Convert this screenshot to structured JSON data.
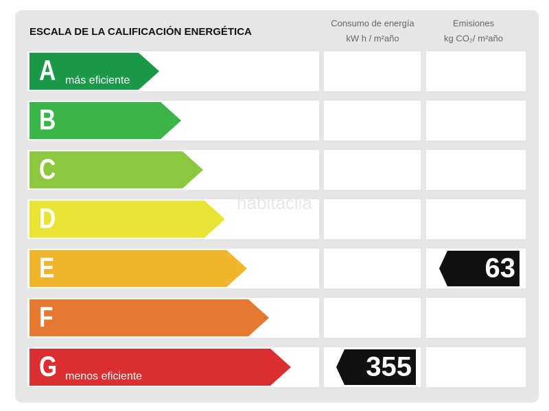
{
  "title": "ESCALA DE LA CALIFICACIÓN ENERGÉTICA",
  "columns": [
    {
      "title": "Consumo de energía",
      "unit": "kW h / m²año"
    },
    {
      "title": "Emisiones",
      "unit": "kg CO₂/ m²año"
    }
  ],
  "ratings": [
    {
      "letter": "A",
      "note": "más eficiente",
      "color": "#1a9a49"
    },
    {
      "letter": "B",
      "color": "#3bb44a"
    },
    {
      "letter": "C",
      "color": "#8dc63f"
    },
    {
      "letter": "D",
      "color": "#e9e433"
    },
    {
      "letter": "E",
      "color": "#f1b42b"
    },
    {
      "letter": "F",
      "color": "#e5792f"
    },
    {
      "letter": "G",
      "note": "menos eficiente",
      "color": "#dc2e30"
    }
  ],
  "consumption": {
    "rating": "G",
    "value": 355
  },
  "emissions": {
    "rating": "E",
    "value": 63
  },
  "watermark": "habitaclia"
}
